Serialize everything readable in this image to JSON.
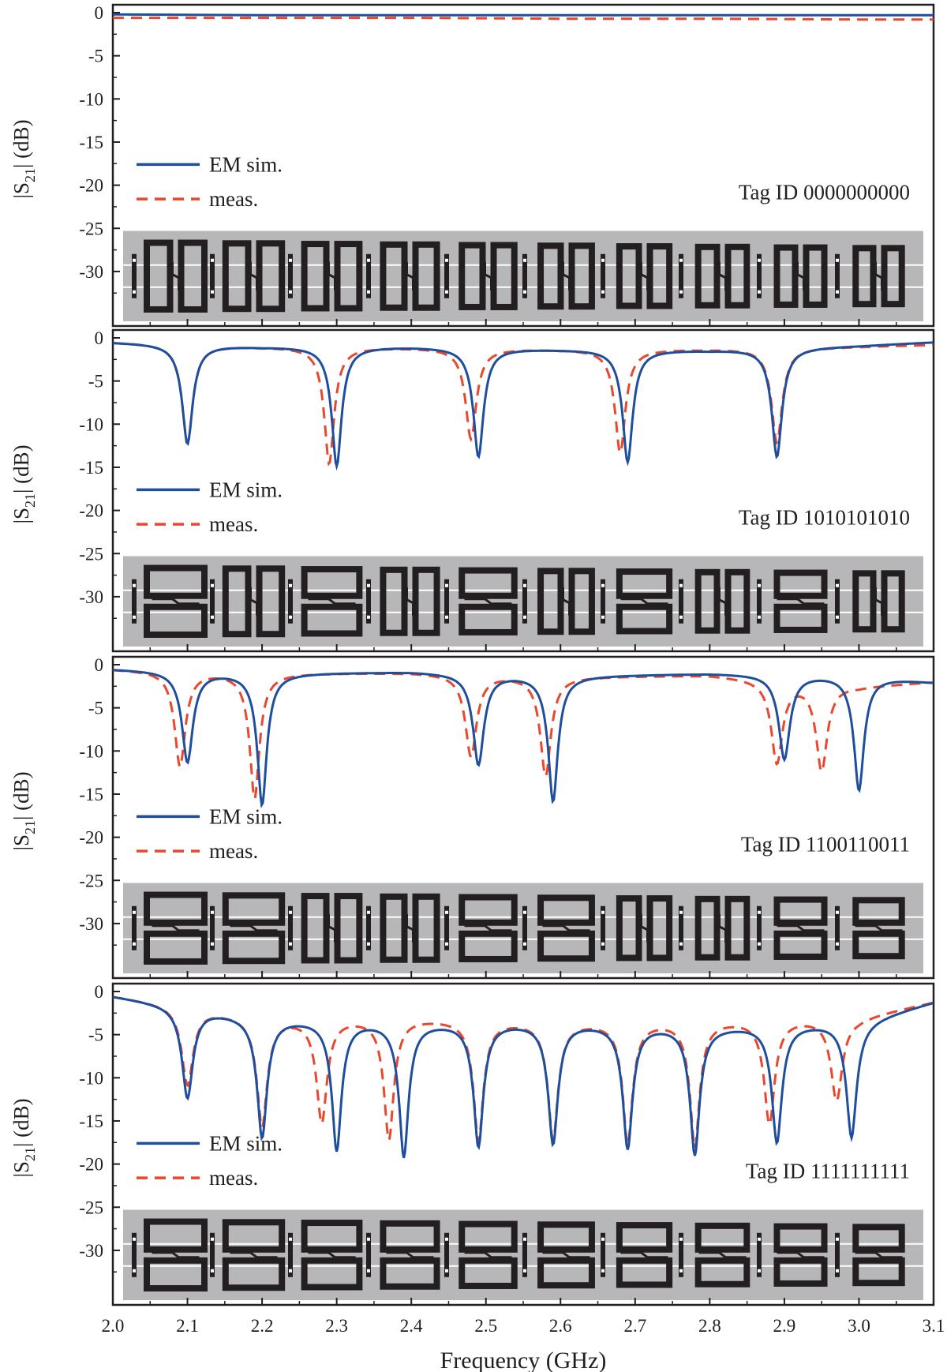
{
  "figure": {
    "xlabel": "Frequency (GHz)",
    "x_ticks": [
      "2.0",
      "2.1",
      "2.2",
      "2.3",
      "2.4",
      "2.5",
      "2.6",
      "2.7",
      "2.8",
      "2.9",
      "3.0",
      "3.1"
    ],
    "y_ticks": [
      "0",
      "-5",
      "-10",
      "-15",
      "-20",
      "-25",
      "-30"
    ],
    "ylabel": {
      "main": "|S",
      "sub": "21",
      "rest": "| (dB)"
    },
    "colors": {
      "sim": "#1f4e9c",
      "meas": "#e8482d",
      "tag_background": "#b7b7b9",
      "resonator": "#231f20"
    }
  },
  "chart_data": [
    {
      "type": "line",
      "panel": 1,
      "tag_label": "Tag ID 0000000000",
      "tag_bits": "0000000000",
      "xlim": [
        2.0,
        3.1
      ],
      "ylim": [
        -35,
        0
      ],
      "ylabel": "|S21| (dB)",
      "xlabel": "Frequency (GHz)",
      "legend": "left",
      "series": [
        {
          "name": "EM sim.",
          "style": "solid",
          "x": [
            2.0,
            2.2,
            2.4,
            2.6,
            2.8,
            3.0,
            3.1
          ],
          "y": [
            -0.2,
            -0.3,
            -0.3,
            -0.3,
            -0.3,
            -0.3,
            -0.3
          ]
        },
        {
          "name": "meas.",
          "style": "dashed",
          "x": [
            2.0,
            2.2,
            2.4,
            2.6,
            2.8,
            3.0,
            3.1
          ],
          "y": [
            -0.6,
            -0.6,
            -0.6,
            -0.7,
            -0.7,
            -0.8,
            -0.8
          ]
        }
      ]
    },
    {
      "type": "line",
      "panel": 2,
      "tag_label": "Tag ID 1010101010",
      "tag_bits": "1010101010",
      "xlim": [
        2.0,
        3.1
      ],
      "ylim": [
        -35,
        0
      ],
      "ylabel": "|S21| (dB)",
      "xlabel": "Frequency (GHz)",
      "legend": "left",
      "series": [
        {
          "name": "EM sim.",
          "style": "solid",
          "base": [
            [
              2.0,
              -0.5
            ],
            [
              2.2,
              -1.0
            ],
            [
              2.4,
              -1.0
            ],
            [
              2.6,
              -1.3
            ],
            [
              2.8,
              -1.4
            ],
            [
              3.0,
              -0.9
            ],
            [
              3.1,
              -0.5
            ]
          ],
          "dips": [
            [
              2.1,
              -11.5
            ],
            [
              2.3,
              -13.8
            ],
            [
              2.49,
              -12.6
            ],
            [
              2.69,
              -13.0
            ],
            [
              2.89,
              -12.6
            ]
          ]
        },
        {
          "name": "meas.",
          "style": "dashed",
          "base": [
            [
              2.0,
              -0.5
            ],
            [
              2.2,
              -1.0
            ],
            [
              2.4,
              -1.1
            ],
            [
              2.6,
              -1.3
            ],
            [
              2.8,
              -1.3
            ],
            [
              3.0,
              -1.0
            ],
            [
              3.1,
              -0.8
            ]
          ],
          "dips": [
            [
              2.1,
              -11.5
            ],
            [
              2.29,
              -13.5
            ],
            [
              2.48,
              -10.5
            ],
            [
              2.68,
              -12.0
            ],
            [
              2.89,
              -11.0
            ]
          ]
        }
      ]
    },
    {
      "type": "line",
      "panel": 3,
      "tag_label": "Tag ID 1100110011",
      "tag_bits": "1100110011",
      "xlim": [
        2.0,
        3.1
      ],
      "ylim": [
        -35,
        0
      ],
      "ylabel": "|S21| (dB)",
      "xlabel": "Frequency (GHz)",
      "legend": "left",
      "series": [
        {
          "name": "EM sim.",
          "style": "solid",
          "base": [
            [
              2.0,
              -0.5
            ],
            [
              2.2,
              -1.0
            ],
            [
              2.4,
              -0.8
            ],
            [
              2.6,
              -1.3
            ],
            [
              2.8,
              -1.0
            ],
            [
              3.0,
              -1.2
            ],
            [
              3.1,
              -2.0
            ]
          ],
          "dips": [
            [
              2.1,
              -10.5
            ],
            [
              2.2,
              -15.2
            ],
            [
              2.49,
              -10.5
            ],
            [
              2.59,
              -14.5
            ],
            [
              2.9,
              -9.8
            ],
            [
              3.0,
              -13.3
            ]
          ]
        },
        {
          "name": "meas.",
          "style": "dashed",
          "base": [
            [
              2.0,
              -0.5
            ],
            [
              2.2,
              -1.0
            ],
            [
              2.4,
              -0.9
            ],
            [
              2.6,
              -1.4
            ],
            [
              2.8,
              -1.2
            ],
            [
              3.0,
              -2.5
            ],
            [
              3.1,
              -2.0
            ]
          ],
          "dips": [
            [
              2.09,
              -11.0
            ],
            [
              2.19,
              -14.5
            ],
            [
              2.48,
              -9.5
            ],
            [
              2.58,
              -11.5
            ],
            [
              2.89,
              -9.5
            ],
            [
              2.95,
              -10.0
            ]
          ]
        }
      ]
    },
    {
      "type": "line",
      "panel": 4,
      "tag_label": "Tag ID 1111111111",
      "tag_bits": "1111111111",
      "xlim": [
        2.0,
        3.1
      ],
      "ylim": [
        -35,
        0
      ],
      "ylabel": "|S21| (dB)",
      "xlabel": "Frequency (GHz)",
      "legend": "left",
      "series": [
        {
          "name": "EM sim.",
          "style": "solid",
          "base": [
            [
              2.0,
              -0.5
            ],
            [
              2.2,
              -3.0
            ],
            [
              2.4,
              -3.5
            ],
            [
              2.6,
              -3.5
            ],
            [
              2.8,
              -4.0
            ],
            [
              3.0,
              -3.5
            ],
            [
              3.1,
              -1.2
            ]
          ],
          "dips": [
            [
              2.1,
              -10.5
            ],
            [
              2.2,
              -13.8
            ],
            [
              2.3,
              -15.0
            ],
            [
              2.39,
              -15.5
            ],
            [
              2.49,
              -14.3
            ],
            [
              2.59,
              -14.0
            ],
            [
              2.69,
              -14.3
            ],
            [
              2.78,
              -14.8
            ],
            [
              2.89,
              -13.6
            ],
            [
              2.99,
              -13.3
            ]
          ]
        },
        {
          "name": "meas.",
          "style": "dashed",
          "base": [
            [
              2.0,
              -0.5
            ],
            [
              2.2,
              -3.0
            ],
            [
              2.4,
              -3.0
            ],
            [
              2.6,
              -3.5
            ],
            [
              2.8,
              -3.3
            ],
            [
              3.0,
              -3.0
            ],
            [
              3.1,
              -1.2
            ]
          ],
          "dips": [
            [
              2.1,
              -9.0
            ],
            [
              2.2,
              -12.5
            ],
            [
              2.28,
              -12.0
            ],
            [
              2.37,
              -14.0
            ],
            [
              2.49,
              -14.0
            ],
            [
              2.59,
              -13.5
            ],
            [
              2.69,
              -14.0
            ],
            [
              2.78,
              -14.5
            ],
            [
              2.88,
              -12.0
            ],
            [
              2.97,
              -9.5
            ]
          ]
        }
      ]
    }
  ]
}
